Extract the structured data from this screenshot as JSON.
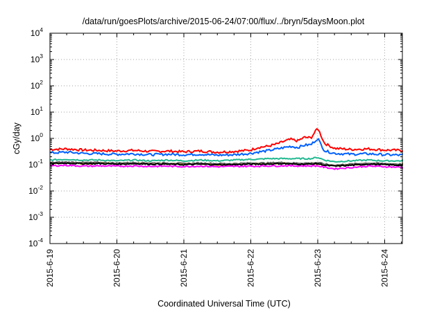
{
  "chart_data": {
    "type": "line",
    "title": "/data/run/goesPlots/archive/2015-06-24/07:00/flux/../bryn/5daysMoon.plot",
    "xlabel": "Coordinated Universal Time (UTC)",
    "ylabel": "cGy/day",
    "yscale": "log",
    "ylim": [
      0.0001,
      10000
    ],
    "xlim": [
      "2015-6-19",
      "2015-6-24 07:00"
    ],
    "grid": true,
    "legend": "none",
    "x_ticks": [
      "2015-6-19",
      "2015-6-20",
      "2015-6-21",
      "2015-6-22",
      "2015-6-23",
      "2015-6-24"
    ],
    "y_ticks": [
      {
        "base": "10",
        "exp": "-4"
      },
      {
        "base": "10",
        "exp": "-3"
      },
      {
        "base": "10",
        "exp": "-2"
      },
      {
        "base": "10",
        "exp": "-1"
      },
      {
        "base": "10",
        "exp": "0"
      },
      {
        "base": "10",
        "exp": "1"
      },
      {
        "base": "10",
        "exp": "2"
      },
      {
        "base": "10",
        "exp": "3"
      },
      {
        "base": "10",
        "exp": "4"
      }
    ],
    "series_x_days": [
      0,
      0.25,
      0.5,
      0.75,
      1,
      1.25,
      1.5,
      1.75,
      2,
      2.25,
      2.5,
      2.75,
      3,
      3.1,
      3.25,
      3.4,
      3.5,
      3.6,
      3.7,
      3.8,
      3.9,
      4,
      4.1,
      4.25,
      4.5,
      4.75,
      5,
      5.25,
      5.29
    ],
    "series": [
      {
        "color": "#ff0000",
        "values": [
          0.38,
          0.4,
          0.36,
          0.35,
          0.33,
          0.35,
          0.32,
          0.33,
          0.31,
          0.33,
          0.3,
          0.32,
          0.36,
          0.45,
          0.5,
          0.62,
          0.78,
          0.92,
          0.8,
          1.1,
          1.05,
          2.5,
          0.65,
          0.42,
          0.38,
          0.4,
          0.36,
          0.35,
          0.34
        ]
      },
      {
        "color": "#0060ff",
        "values": [
          0.28,
          0.3,
          0.27,
          0.26,
          0.25,
          0.26,
          0.24,
          0.25,
          0.24,
          0.25,
          0.23,
          0.24,
          0.27,
          0.3,
          0.34,
          0.4,
          0.45,
          0.5,
          0.45,
          0.55,
          0.58,
          1.0,
          0.34,
          0.27,
          0.25,
          0.26,
          0.24,
          0.23,
          0.23
        ]
      },
      {
        "color": "#20b890",
        "values": [
          0.15,
          0.16,
          0.15,
          0.15,
          0.14,
          0.15,
          0.14,
          0.15,
          0.14,
          0.15,
          0.14,
          0.15,
          0.16,
          0.16,
          0.17,
          0.17,
          0.17,
          0.17,
          0.17,
          0.17,
          0.17,
          0.19,
          0.15,
          0.13,
          0.14,
          0.15,
          0.14,
          0.14,
          0.14
        ]
      },
      {
        "color": "#c09000",
        "values": [
          0.115,
          0.12,
          0.11,
          0.115,
          0.11,
          0.115,
          0.11,
          0.11,
          0.105,
          0.11,
          0.1,
          0.105,
          0.11,
          0.11,
          0.11,
          0.11,
          0.115,
          0.11,
          0.11,
          0.11,
          0.11,
          0.11,
          0.1,
          0.09,
          0.1,
          0.11,
          0.105,
          0.1,
          0.1
        ]
      },
      {
        "color": "#606060",
        "values": [
          0.12,
          0.125,
          0.12,
          0.12,
          0.115,
          0.12,
          0.115,
          0.115,
          0.11,
          0.115,
          0.11,
          0.11,
          0.115,
          0.115,
          0.115,
          0.12,
          0.12,
          0.115,
          0.115,
          0.115,
          0.115,
          0.12,
          0.105,
          0.095,
          0.105,
          0.115,
          0.11,
          0.105,
          0.105
        ]
      },
      {
        "color": "#000000",
        "values": [
          0.11,
          0.115,
          0.11,
          0.11,
          0.105,
          0.11,
          0.105,
          0.105,
          0.1,
          0.105,
          0.1,
          0.1,
          0.105,
          0.105,
          0.105,
          0.11,
          0.11,
          0.105,
          0.105,
          0.105,
          0.105,
          0.11,
          0.095,
          0.088,
          0.095,
          0.105,
          0.1,
          0.095,
          0.095
        ]
      },
      {
        "color": "#ff00ff",
        "values": [
          0.09,
          0.095,
          0.088,
          0.09,
          0.087,
          0.09,
          0.086,
          0.088,
          0.085,
          0.088,
          0.084,
          0.086,
          0.088,
          0.088,
          0.09,
          0.09,
          0.092,
          0.09,
          0.09,
          0.09,
          0.09,
          0.09,
          0.08,
          0.07,
          0.078,
          0.088,
          0.084,
          0.08,
          0.08
        ]
      }
    ]
  }
}
